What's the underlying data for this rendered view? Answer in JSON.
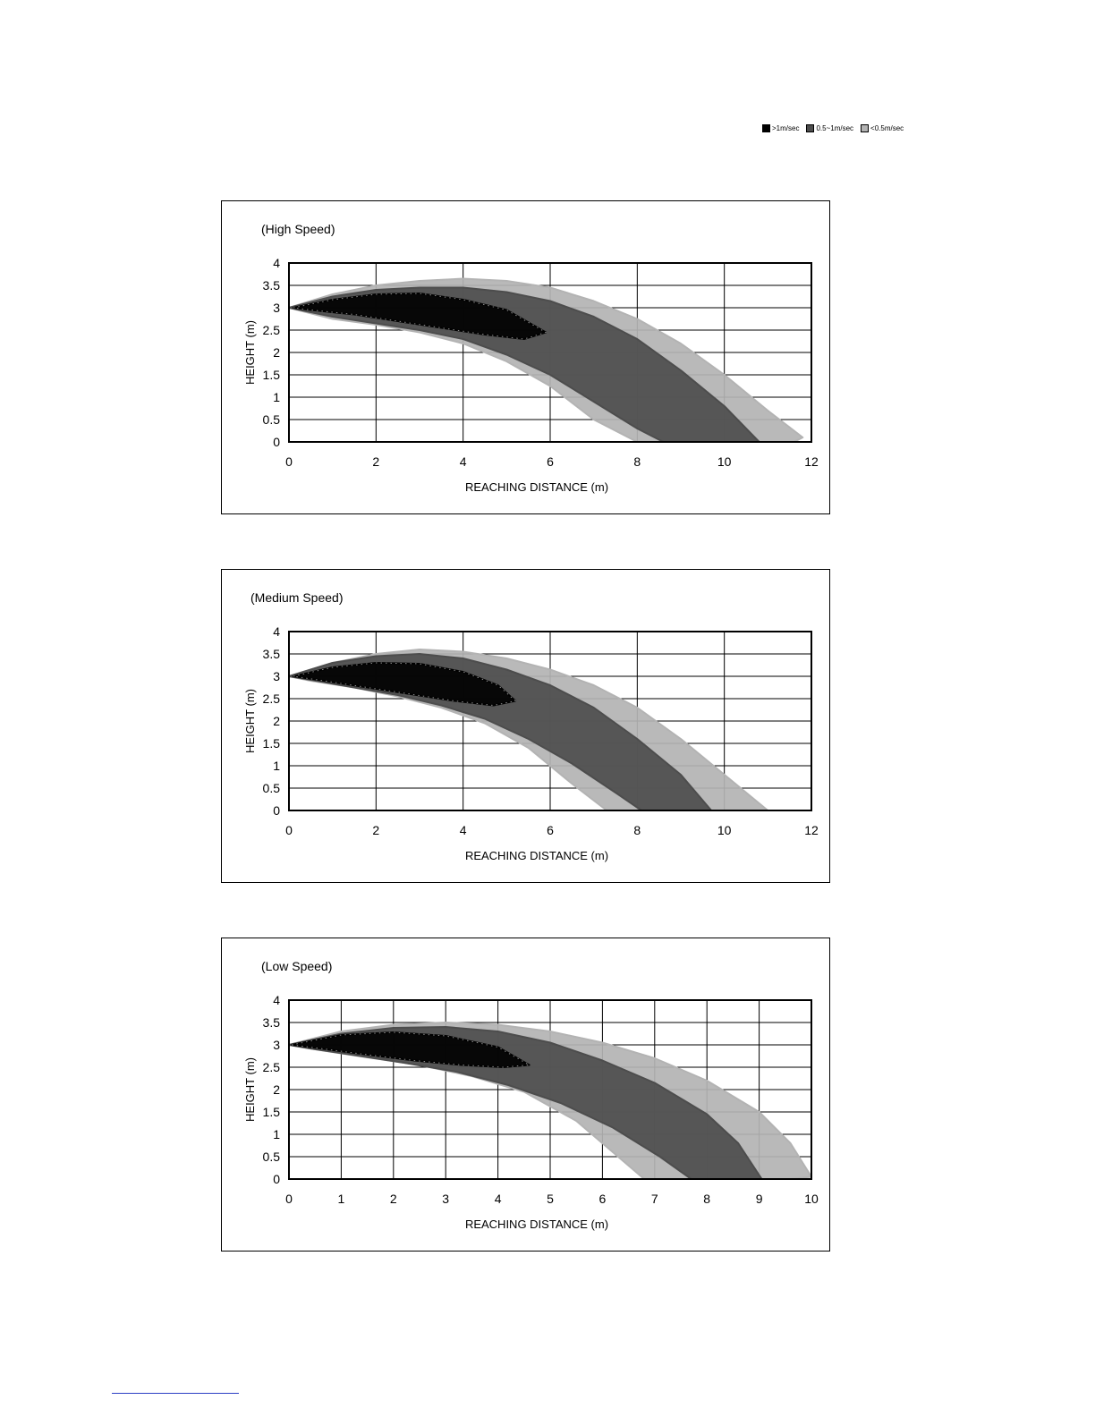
{
  "legend": {
    "items": [
      {
        "label": ">1m/sec",
        "color": "#000000"
      },
      {
        "label": "0.5~1m/sec",
        "color": "#4d4d4d"
      },
      {
        "label": "<0.5m/sec",
        "color": "#b3b3b3"
      }
    ]
  },
  "chart_data": [
    {
      "type": "area",
      "title": "(High Speed)",
      "xlabel": "REACHING DISTANCE (m)",
      "ylabel": "HEIGHT (m)",
      "xlim": [
        0,
        12
      ],
      "ylim": [
        0,
        4
      ],
      "xticks": [
        0,
        2,
        4,
        6,
        8,
        10,
        12
      ],
      "yticks": [
        0,
        0.5,
        1,
        1.5,
        2,
        2.5,
        3,
        3.5,
        4
      ],
      "xtick_labels": [
        "0",
        "2",
        "4",
        "6",
        "8",
        "10",
        "12"
      ],
      "ytick_labels": [
        "0",
        "0.5",
        "1",
        "1.5",
        "2",
        "2.5",
        "3",
        "3.5",
        "4"
      ],
      "grid": true,
      "series": [
        {
          "name": "<0.5m/sec",
          "color": "#b3b3b3",
          "upper": [
            [
              0,
              3.0
            ],
            [
              1,
              3.3
            ],
            [
              2,
              3.5
            ],
            [
              3,
              3.6
            ],
            [
              4,
              3.65
            ],
            [
              5,
              3.6
            ],
            [
              6,
              3.45
            ],
            [
              7,
              3.15
            ],
            [
              8,
              2.75
            ],
            [
              9,
              2.2
            ],
            [
              10,
              1.5
            ],
            [
              11,
              0.7
            ],
            [
              11.8,
              0.1
            ]
          ],
          "lower": [
            [
              11.6,
              0.0
            ],
            [
              8,
              0.0
            ],
            [
              7,
              0.5
            ],
            [
              6,
              1.25
            ],
            [
              5,
              1.8
            ],
            [
              4,
              2.2
            ],
            [
              3,
              2.45
            ],
            [
              2,
              2.62
            ],
            [
              1,
              2.75
            ],
            [
              0,
              3.0
            ]
          ]
        },
        {
          "name": "0.5~1m/sec",
          "color": "#4d4d4d",
          "upper": [
            [
              0,
              3.0
            ],
            [
              1,
              3.25
            ],
            [
              2,
              3.4
            ],
            [
              3,
              3.45
            ],
            [
              4,
              3.45
            ],
            [
              5,
              3.35
            ],
            [
              6,
              3.15
            ],
            [
              7,
              2.8
            ],
            [
              8,
              2.3
            ],
            [
              9,
              1.6
            ],
            [
              10,
              0.8
            ],
            [
              10.8,
              0.0
            ]
          ],
          "lower": [
            [
              8.6,
              0.0
            ],
            [
              8,
              0.3
            ],
            [
              7,
              0.9
            ],
            [
              6,
              1.5
            ],
            [
              5,
              1.95
            ],
            [
              4,
              2.3
            ],
            [
              3,
              2.5
            ],
            [
              2,
              2.65
            ],
            [
              1,
              2.8
            ],
            [
              0,
              3.0
            ]
          ]
        },
        {
          "name": ">1m/sec",
          "color": "#000000",
          "upper": [
            [
              0.1,
              3.0
            ],
            [
              1,
              3.18
            ],
            [
              2,
              3.3
            ],
            [
              3,
              3.32
            ],
            [
              4,
              3.18
            ],
            [
              5,
              2.95
            ],
            [
              5.9,
              2.45
            ]
          ],
          "lower": [
            [
              5.4,
              2.3
            ],
            [
              4.5,
              2.4
            ],
            [
              3.5,
              2.55
            ],
            [
              2.5,
              2.7
            ],
            [
              1.5,
              2.85
            ],
            [
              0.5,
              2.95
            ],
            [
              0.1,
              3.0
            ]
          ]
        }
      ]
    },
    {
      "type": "area",
      "title": "(Medium Speed)",
      "xlabel": "REACHING DISTANCE (m)",
      "ylabel": "HEIGHT (m)",
      "xlim": [
        0,
        12
      ],
      "ylim": [
        0,
        4
      ],
      "xticks": [
        0,
        2,
        4,
        6,
        8,
        10,
        12
      ],
      "yticks": [
        0,
        0.5,
        1,
        1.5,
        2,
        2.5,
        3,
        3.5,
        4
      ],
      "xtick_labels": [
        "0",
        "2",
        "4",
        "6",
        "8",
        "10",
        "12"
      ],
      "ytick_labels": [
        "0",
        "0.5",
        "1",
        "1.5",
        "2",
        "2.5",
        "3",
        "3.5",
        "4"
      ],
      "grid": true,
      "series": [
        {
          "name": "<0.5m/sec",
          "color": "#b3b3b3",
          "upper": [
            [
              0,
              3.0
            ],
            [
              1,
              3.3
            ],
            [
              2,
              3.5
            ],
            [
              3,
              3.6
            ],
            [
              4,
              3.55
            ],
            [
              5,
              3.4
            ],
            [
              6,
              3.15
            ],
            [
              7,
              2.8
            ],
            [
              8,
              2.3
            ],
            [
              9,
              1.6
            ],
            [
              10,
              0.8
            ],
            [
              11,
              0.0
            ]
          ],
          "lower": [
            [
              10.8,
              0.0
            ],
            [
              7.3,
              0.0
            ],
            [
              6.5,
              0.6
            ],
            [
              5.5,
              1.4
            ],
            [
              4.5,
              1.95
            ],
            [
              3.5,
              2.3
            ],
            [
              2.5,
              2.55
            ],
            [
              1.5,
              2.75
            ],
            [
              0.5,
              2.9
            ],
            [
              0,
              3.0
            ]
          ]
        },
        {
          "name": "0.5~1m/sec",
          "color": "#4d4d4d",
          "upper": [
            [
              0,
              3.0
            ],
            [
              1,
              3.3
            ],
            [
              2,
              3.45
            ],
            [
              3,
              3.5
            ],
            [
              4,
              3.4
            ],
            [
              5,
              3.15
            ],
            [
              6,
              2.8
            ],
            [
              7,
              2.3
            ],
            [
              8,
              1.6
            ],
            [
              9,
              0.8
            ],
            [
              9.7,
              0.0
            ]
          ],
          "lower": [
            [
              8.1,
              0.0
            ],
            [
              7.5,
              0.4
            ],
            [
              6.5,
              1.05
            ],
            [
              5.5,
              1.6
            ],
            [
              4.5,
              2.05
            ],
            [
              3.5,
              2.35
            ],
            [
              2.5,
              2.58
            ],
            [
              1.5,
              2.75
            ],
            [
              0.5,
              2.92
            ],
            [
              0,
              3.0
            ]
          ]
        },
        {
          "name": ">1m/sec",
          "color": "#000000",
          "upper": [
            [
              0.1,
              3.0
            ],
            [
              1,
              3.2
            ],
            [
              2,
              3.3
            ],
            [
              3,
              3.28
            ],
            [
              4,
              3.1
            ],
            [
              4.8,
              2.8
            ],
            [
              5.2,
              2.45
            ]
          ],
          "lower": [
            [
              4.7,
              2.35
            ],
            [
              3.8,
              2.45
            ],
            [
              2.8,
              2.6
            ],
            [
              1.8,
              2.75
            ],
            [
              0.8,
              2.9
            ],
            [
              0.1,
              3.0
            ]
          ]
        }
      ]
    },
    {
      "type": "area",
      "title": "(Low Speed)",
      "xlabel": "REACHING DISTANCE (m)",
      "ylabel": "HEIGHT (m)",
      "xlim": [
        0,
        10
      ],
      "ylim": [
        0,
        4
      ],
      "xticks": [
        0,
        1,
        2,
        3,
        4,
        5,
        6,
        7,
        8,
        9,
        10
      ],
      "yticks": [
        0,
        0.5,
        1,
        1.5,
        2,
        2.5,
        3,
        3.5,
        4
      ],
      "xtick_labels": [
        "0",
        "1",
        "2",
        "3",
        "4",
        "5",
        "6",
        "7",
        "8",
        "9",
        "10"
      ],
      "ytick_labels": [
        "0",
        "0.5",
        "1",
        "1.5",
        "2",
        "2.5",
        "3",
        "3.5",
        "4"
      ],
      "grid": true,
      "series": [
        {
          "name": "<0.5m/sec",
          "color": "#b3b3b3",
          "upper": [
            [
              0,
              3.0
            ],
            [
              1,
              3.3
            ],
            [
              2,
              3.45
            ],
            [
              3,
              3.5
            ],
            [
              4,
              3.45
            ],
            [
              5,
              3.3
            ],
            [
              6,
              3.05
            ],
            [
              7,
              2.7
            ],
            [
              8,
              2.2
            ],
            [
              9,
              1.5
            ],
            [
              9.6,
              0.8
            ],
            [
              10,
              0.05
            ]
          ],
          "lower": [
            [
              9.6,
              0.0
            ],
            [
              6.8,
              0.0
            ],
            [
              6.2,
              0.6
            ],
            [
              5.5,
              1.3
            ],
            [
              4.5,
              1.95
            ],
            [
              3.5,
              2.3
            ],
            [
              2.5,
              2.55
            ],
            [
              1.5,
              2.72
            ],
            [
              0.5,
              2.9
            ],
            [
              0,
              3.0
            ]
          ]
        },
        {
          "name": "0.5~1m/sec",
          "color": "#4d4d4d",
          "upper": [
            [
              0,
              3.0
            ],
            [
              1,
              3.25
            ],
            [
              2,
              3.38
            ],
            [
              3,
              3.4
            ],
            [
              4,
              3.3
            ],
            [
              5,
              3.05
            ],
            [
              6,
              2.65
            ],
            [
              7,
              2.15
            ],
            [
              8,
              1.45
            ],
            [
              8.6,
              0.8
            ],
            [
              9.05,
              0.0
            ]
          ],
          "lower": [
            [
              7.7,
              0.0
            ],
            [
              7.1,
              0.5
            ],
            [
              6.2,
              1.15
            ],
            [
              5.2,
              1.7
            ],
            [
              4.2,
              2.1
            ],
            [
              3.2,
              2.4
            ],
            [
              2.2,
              2.6
            ],
            [
              1.2,
              2.78
            ],
            [
              0.4,
              2.92
            ],
            [
              0,
              3.0
            ]
          ]
        },
        {
          "name": ">1m/sec",
          "color": "#000000",
          "upper": [
            [
              0.05,
              3.0
            ],
            [
              1,
              3.22
            ],
            [
              2,
              3.28
            ],
            [
              3,
              3.2
            ],
            [
              4,
              2.95
            ],
            [
              4.6,
              2.55
            ]
          ],
          "lower": [
            [
              4.1,
              2.5
            ],
            [
              3.3,
              2.55
            ],
            [
              2.4,
              2.65
            ],
            [
              1.5,
              2.78
            ],
            [
              0.6,
              2.92
            ],
            [
              0.05,
              3.0
            ]
          ]
        }
      ]
    }
  ]
}
